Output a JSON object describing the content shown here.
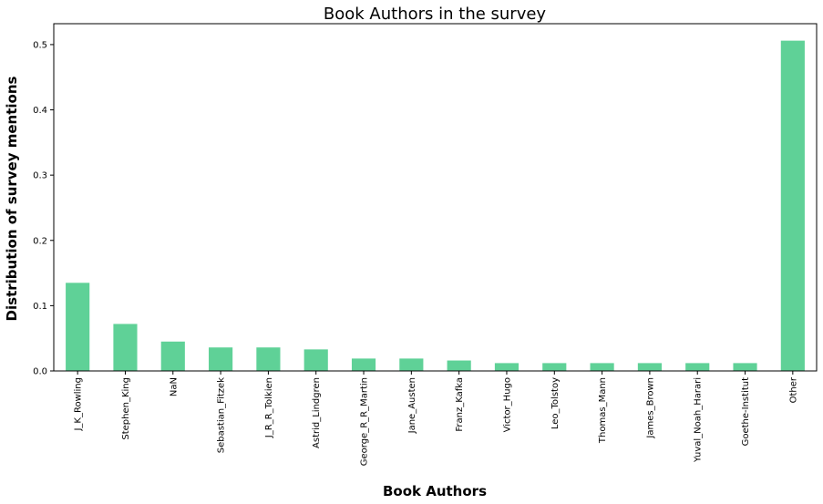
{
  "chart_data": {
    "type": "bar",
    "title": "Book Authors in the survey",
    "xlabel": "Book Authors",
    "ylabel": "Distribution of survey mentions",
    "categories": [
      "J_K_Rowling",
      "Stephen_King",
      "NaN",
      "Sebastian_Fitzek",
      "J_R_R_Tolkien",
      "Astrid_Lindgren",
      "George_R_R_Martin",
      "Jane_Austen",
      "Franz_Kafka",
      "Victor_Hugo",
      "Leo_Tolstoy",
      "Thomas_Mann",
      "James_Brown",
      "Yuval_Noah_Harari",
      "Goethe-Institut",
      "Other"
    ],
    "values": [
      0.135,
      0.072,
      0.045,
      0.036,
      0.036,
      0.033,
      0.019,
      0.019,
      0.016,
      0.012,
      0.012,
      0.012,
      0.012,
      0.012,
      0.012,
      0.506
    ],
    "ylim": [
      0,
      0.532
    ],
    "yticks": [
      "0.0",
      "0.1",
      "0.2",
      "0.3",
      "0.4",
      "0.5"
    ],
    "grid": false,
    "bar_color": "#5fd197"
  }
}
